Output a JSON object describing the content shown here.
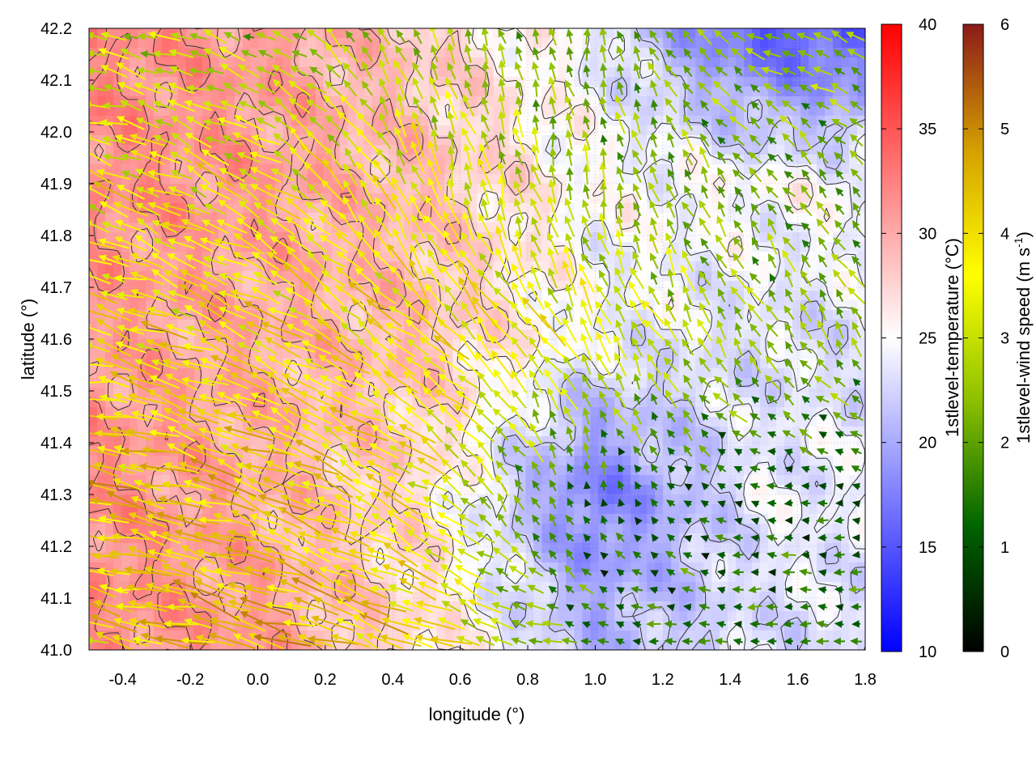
{
  "chart_data": {
    "type": "heatmap",
    "overlay": "wind-vectors-with-contours",
    "xlabel": "longitude (°)",
    "ylabel": "latitude (°)",
    "xlim": [
      -0.5,
      1.8
    ],
    "ylim": [
      41.0,
      42.2
    ],
    "xticks": [
      "-0.4",
      "-0.2",
      "0.0",
      "0.2",
      "0.4",
      "0.6",
      "0.8",
      "1.0",
      "1.2",
      "1.4",
      "1.6",
      "1.8"
    ],
    "yticks": [
      "41.0",
      "41.1",
      "41.2",
      "41.3",
      "41.4",
      "41.5",
      "41.6",
      "41.7",
      "41.8",
      "41.9",
      "42.0",
      "42.1",
      "42.2"
    ],
    "grid": true,
    "temperature_colorbar": {
      "label": "1stlevel-temperature (°C)",
      "range": [
        10,
        40
      ],
      "ticks": [
        "10",
        "15",
        "20",
        "25",
        "30",
        "35",
        "40"
      ],
      "colors": [
        "#0000ff",
        "#ffffff",
        "#ff0000"
      ]
    },
    "wind_colorbar": {
      "label": "1stlevel-wind speed (m s-1)",
      "label_base": "1stlevel-wind speed (m s",
      "label_sup": "-1",
      "label_end": ")",
      "range": [
        0,
        6
      ],
      "ticks": [
        "0",
        "1",
        "2",
        "3",
        "4",
        "5",
        "6"
      ],
      "colors": [
        "#000000",
        "#006400",
        "#8cc000",
        "#ffff00",
        "#d4a000",
        "#8b1a1a"
      ]
    },
    "temperature_field": {
      "x": [
        -0.5,
        0.0,
        0.5,
        1.0,
        1.5
      ],
      "y": [
        41.0,
        41.3,
        41.6,
        41.9,
        42.2
      ],
      "values": [
        [
          32,
          31,
          27,
          21,
          23
        ],
        [
          32,
          30,
          27,
          17,
          24
        ],
        [
          31,
          30,
          29,
          24,
          23
        ],
        [
          32,
          31,
          29,
          25,
          25
        ],
        [
          32,
          31,
          28,
          24,
          15
        ]
      ]
    },
    "wind_field": {
      "x": [
        -0.5,
        0.0,
        0.5,
        1.0,
        1.5
      ],
      "y": [
        41.0,
        41.3,
        41.6,
        41.9,
        42.2
      ],
      "speed": [
        [
          3.8,
          4.5,
          4.0,
          1.5,
          1.5
        ],
        [
          4.2,
          4.2,
          3.5,
          1.0,
          1.0
        ],
        [
          3.8,
          3.8,
          3.8,
          3.5,
          2.5
        ],
        [
          3.5,
          3.5,
          3.5,
          2.5,
          2.0
        ],
        [
          3.0,
          2.5,
          2.5,
          2.0,
          2.5
        ]
      ],
      "direction_to_deg": [
        [
          170,
          165,
          160,
          175,
          180
        ],
        [
          172,
          160,
          150,
          100,
          175
        ],
        [
          165,
          155,
          140,
          120,
          120
        ],
        [
          160,
          150,
          110,
          100,
          130
        ],
        [
          170,
          160,
          110,
          100,
          160
        ]
      ]
    },
    "contour_levels_degC": [
      22,
      24,
      26,
      28,
      30,
      32
    ]
  }
}
